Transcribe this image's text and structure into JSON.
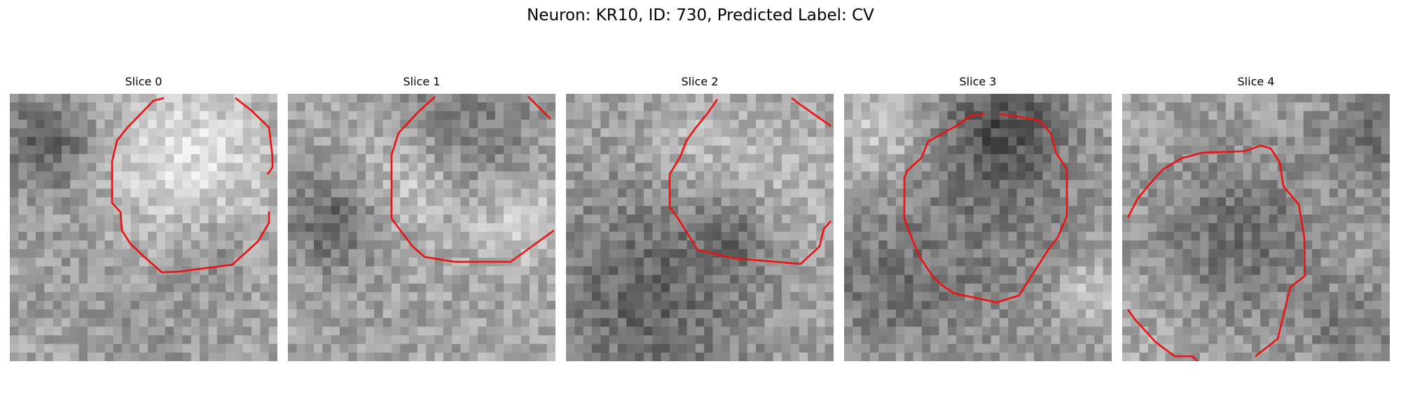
{
  "figure": {
    "suptitle": "Neuron: KR10, ID: 730, Predicted Label: CV",
    "contour_color": "#ee1111"
  },
  "panels": [
    {
      "title": "Slice 0"
    },
    {
      "title": "Slice 1"
    },
    {
      "title": "Slice 2"
    },
    {
      "title": "Slice 3"
    },
    {
      "title": "Slice 4"
    }
  ]
}
